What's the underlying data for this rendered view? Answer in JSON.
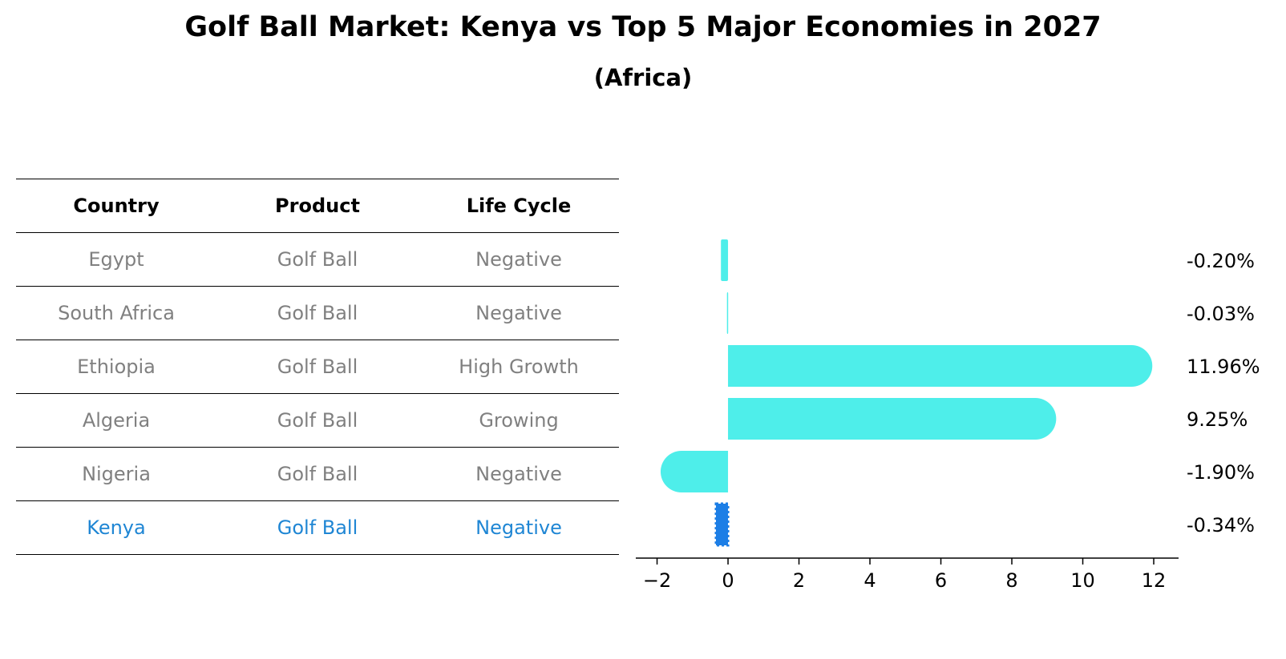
{
  "title": "Golf Ball Market: Kenya vs Top 5 Major Economies in 2027",
  "subtitle": "(Africa)",
  "table": {
    "headers": [
      "Country",
      "Product",
      "Life Cycle"
    ],
    "rows": [
      {
        "country": "Egypt",
        "product": "Golf Ball",
        "life_cycle": "Negative"
      },
      {
        "country": "South Africa",
        "product": "Golf Ball",
        "life_cycle": "Negative"
      },
      {
        "country": "Ethiopia",
        "product": "Golf Ball",
        "life_cycle": "High Growth"
      },
      {
        "country": "Algeria",
        "product": "Golf Ball",
        "life_cycle": "Growing"
      },
      {
        "country": "Nigeria",
        "product": "Golf Ball",
        "life_cycle": "Negative"
      },
      {
        "country": "Kenya",
        "product": "Golf Ball",
        "life_cycle": "Negative"
      }
    ],
    "highlight_color": "#1f86d4",
    "text_color": "#808080"
  },
  "chart_data": {
    "type": "bar",
    "orientation": "horizontal",
    "categories": [
      "Egypt",
      "South Africa",
      "Ethiopia",
      "Algeria",
      "Nigeria",
      "Kenya"
    ],
    "values": [
      -0.2,
      -0.03,
      11.96,
      9.25,
      -1.9,
      -0.34
    ],
    "value_labels": [
      "-0.20%",
      "-0.03%",
      "11.96%",
      "9.25%",
      "-1.90%",
      "-0.34%"
    ],
    "xlim": [
      -2.6,
      12.7
    ],
    "xticks": [
      -2,
      0,
      2,
      4,
      6,
      8,
      10,
      12
    ],
    "xtick_labels": [
      "−2",
      "0",
      "2",
      "4",
      "6",
      "8",
      "10",
      "12"
    ],
    "highlight_category": "Kenya",
    "bar_color": "#4eeeea",
    "highlight_color": "#1c7ee6"
  }
}
